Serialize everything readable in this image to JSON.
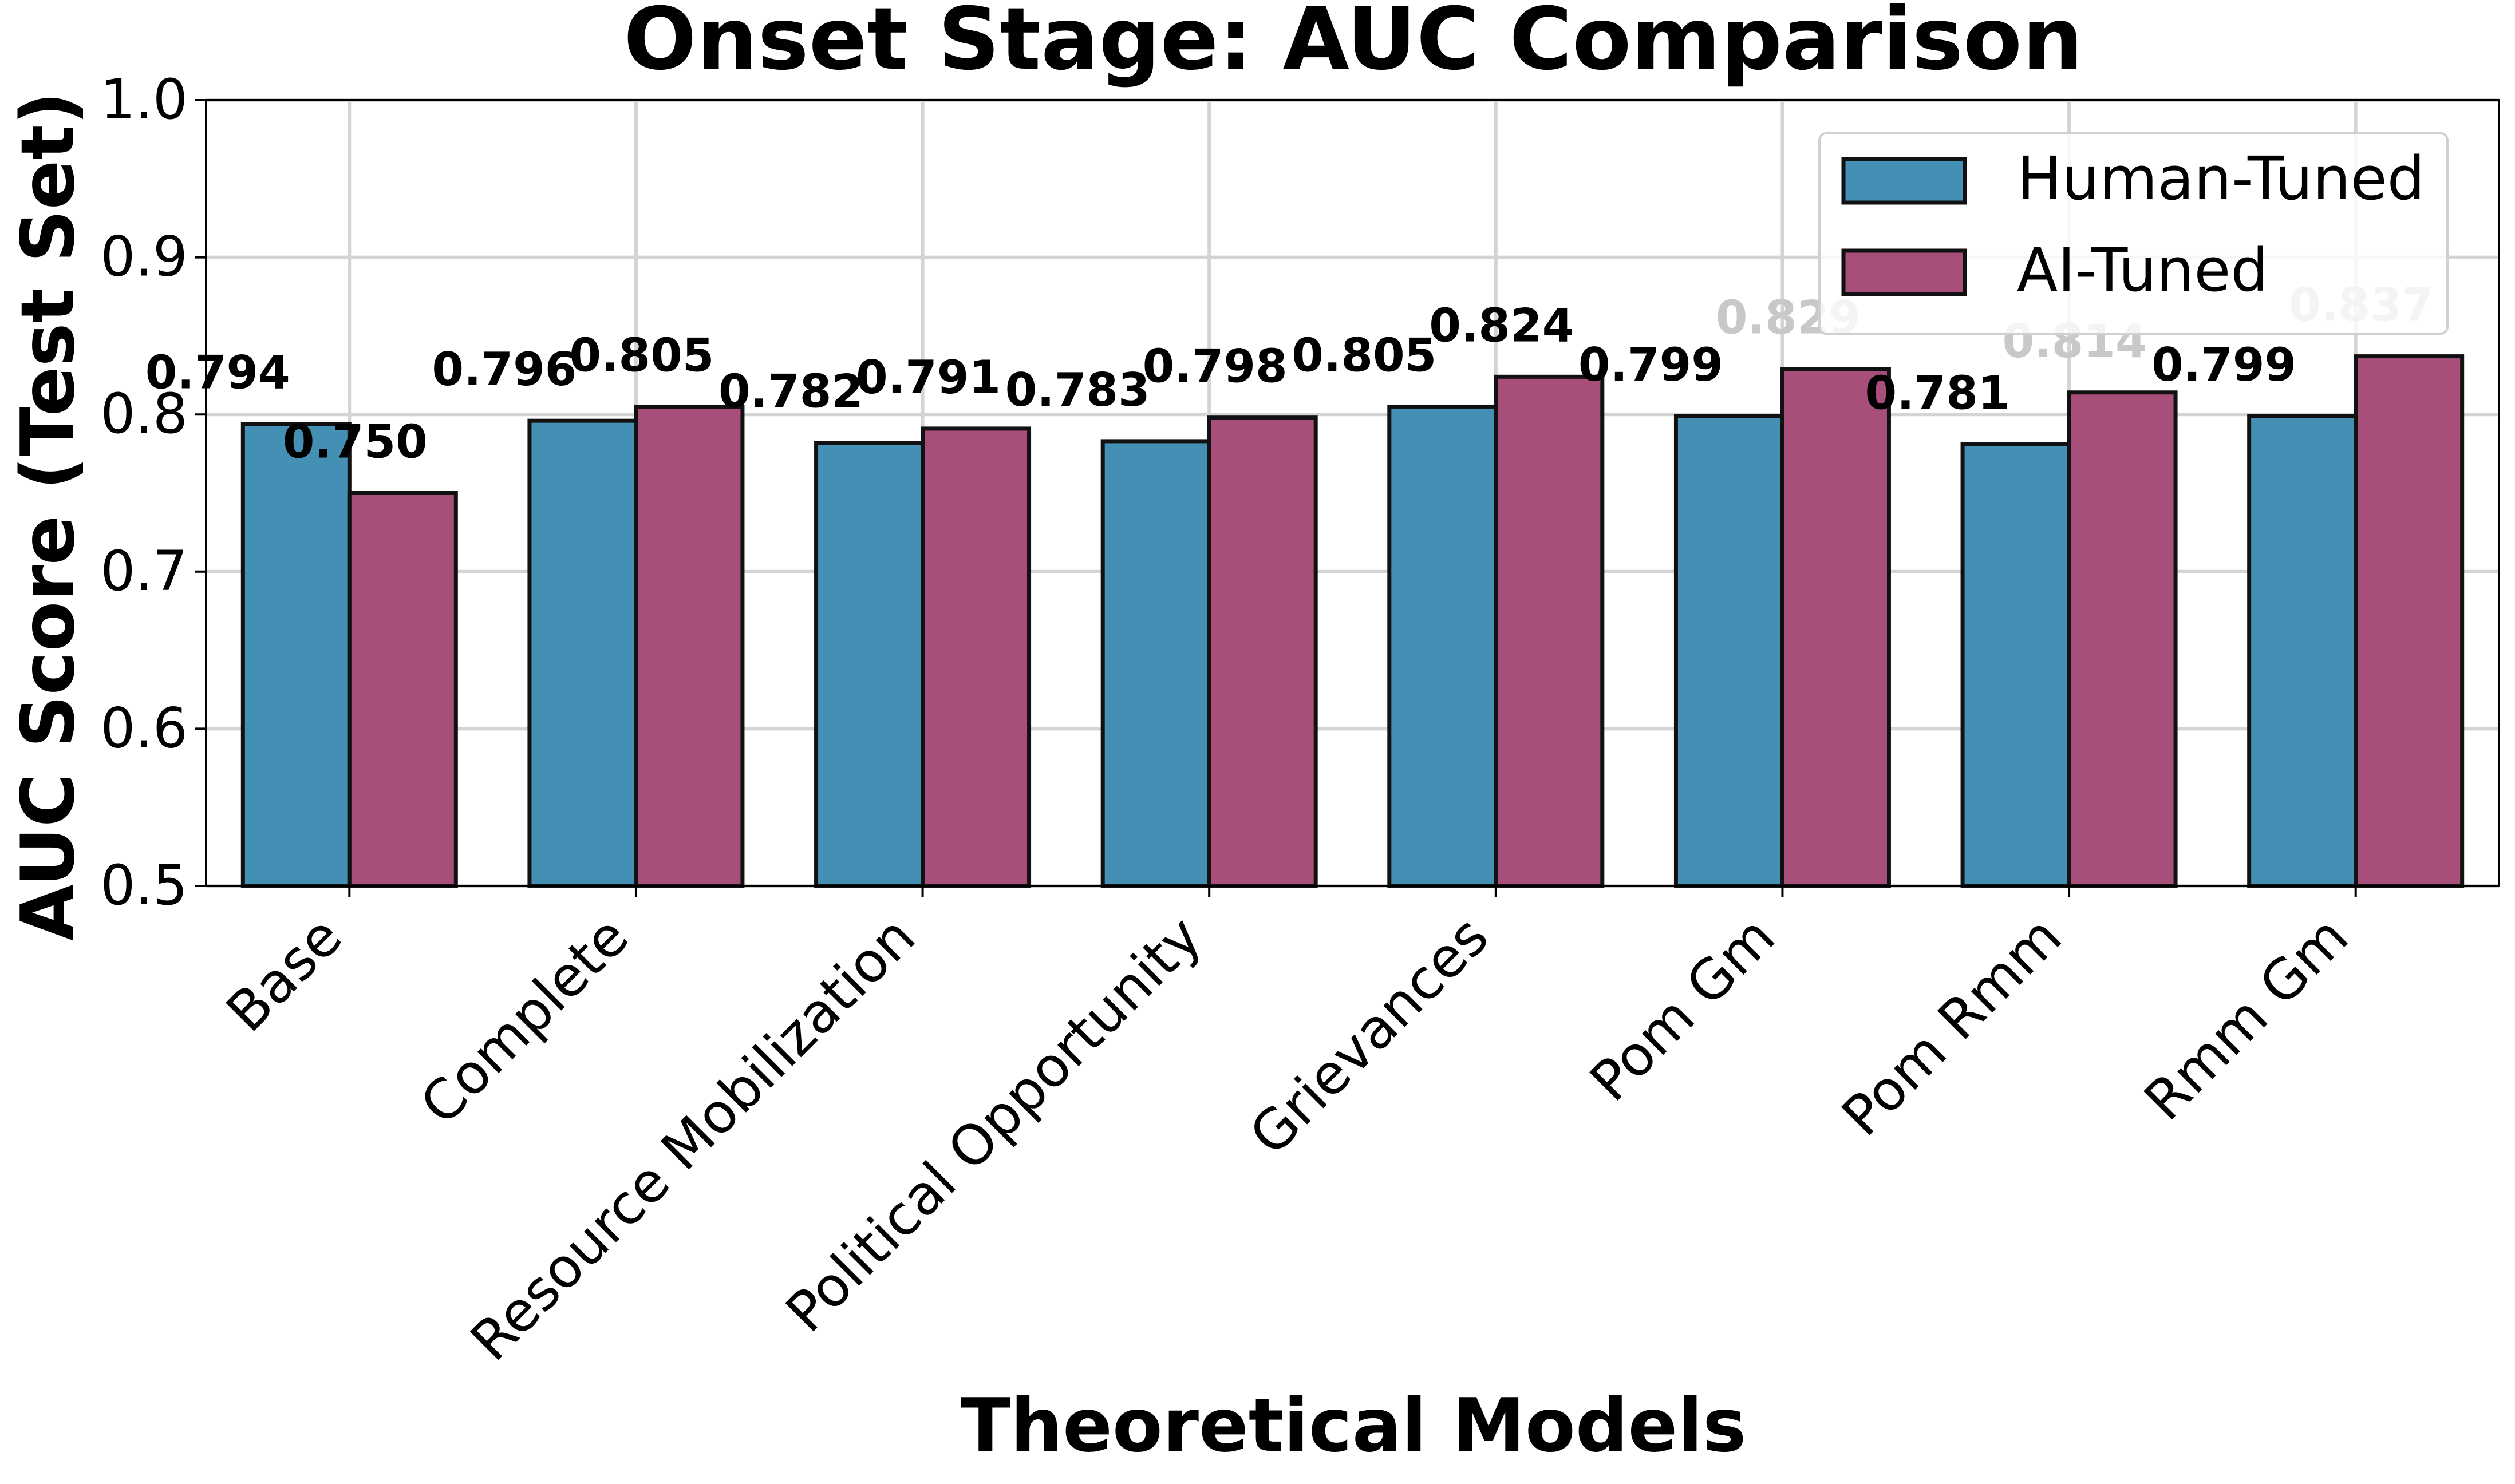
{
  "chart_data": {
    "type": "bar",
    "title": "Onset Stage: AUC Comparison",
    "xlabel": "Theoretical Models",
    "ylabel": "AUC Score (Test Set)",
    "ylim": [
      0.5,
      1.0
    ],
    "yticks": [
      "0.5",
      "0.6",
      "0.7",
      "0.8",
      "0.9",
      "1.0"
    ],
    "grid": true,
    "legend_position": "top-right",
    "categories": [
      "Base",
      "Complete",
      "Resource Mobilization",
      "Political Opportunity",
      "Grievances",
      "Pom Gm",
      "Pom Rmm",
      "Rmm Gm"
    ],
    "series": [
      {
        "name": "Human-Tuned",
        "color": "#4490b5",
        "values": [
          0.794,
          0.796,
          0.782,
          0.783,
          0.805,
          0.799,
          0.781,
          0.799
        ],
        "labels": [
          "0.794",
          "0.796",
          "0.782",
          "0.783",
          "0.805",
          "0.799",
          "0.781",
          "0.799"
        ]
      },
      {
        "name": "AI-Tuned",
        "color": "#a84e7b",
        "values": [
          0.75,
          0.805,
          0.791,
          0.798,
          0.824,
          0.829,
          0.814,
          0.837
        ],
        "labels": [
          "0.750",
          "0.805",
          "0.791",
          "0.798",
          "0.824",
          "0.829",
          "0.814",
          "0.837"
        ]
      }
    ]
  }
}
